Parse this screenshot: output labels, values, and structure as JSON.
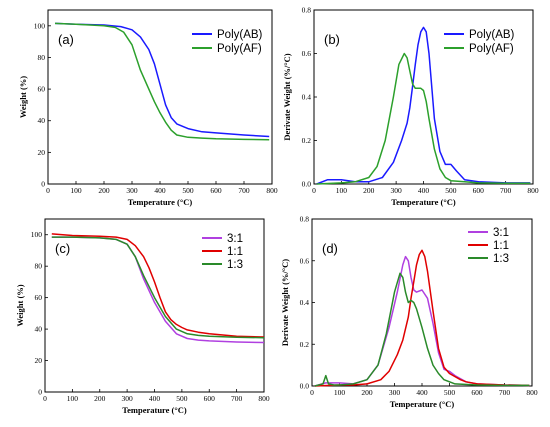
{
  "chart_data": [
    {
      "id": "a",
      "type": "line",
      "panel_label": "(a)",
      "xlabel": "Temperature (°C)",
      "ylabel": "Weight (%)",
      "xlim": [
        0,
        800
      ],
      "ylim": [
        0,
        110
      ],
      "xticks": [
        0,
        100,
        200,
        300,
        400,
        500,
        600,
        700,
        800
      ],
      "yticks": [
        0,
        20,
        40,
        60,
        80,
        100
      ],
      "legend_position": "top-right",
      "series": [
        {
          "name": "Poly(AB)",
          "color": "#1a1aff",
          "x": [
            25,
            100,
            200,
            260,
            300,
            330,
            360,
            380,
            400,
            420,
            440,
            460,
            500,
            550,
            600,
            700,
            790
          ],
          "y": [
            101.5,
            101,
            100.5,
            99.5,
            97.5,
            93,
            85,
            76,
            63,
            50,
            42,
            38,
            35,
            33,
            32.3,
            31,
            30
          ]
        },
        {
          "name": "Poly(AF)",
          "color": "#2ca02c",
          "x": [
            25,
            100,
            200,
            240,
            270,
            300,
            330,
            360,
            380,
            400,
            420,
            440,
            460,
            500,
            550,
            600,
            700,
            790
          ],
          "y": [
            101.5,
            101,
            100,
            99,
            96,
            88,
            72,
            60,
            52,
            45,
            39,
            34,
            31,
            29.5,
            29,
            28.6,
            28.2,
            28
          ]
        }
      ]
    },
    {
      "id": "b",
      "type": "line",
      "panel_label": "(b)",
      "xlabel": "Temperature (°C)",
      "ylabel": "Derivate Weight (%/°C)",
      "xlim": [
        0,
        800
      ],
      "ylim": [
        0,
        0.8
      ],
      "xticks": [
        0,
        100,
        200,
        300,
        400,
        500,
        600,
        700,
        800
      ],
      "yticks": [
        0.0,
        0.2,
        0.4,
        0.6,
        0.8
      ],
      "legend_position": "top-right",
      "series": [
        {
          "name": "Poly(AB)",
          "color": "#1a1aff",
          "x": [
            10,
            50,
            100,
            150,
            200,
            250,
            290,
            320,
            340,
            350,
            360,
            370,
            380,
            390,
            400,
            410,
            420,
            440,
            460,
            480,
            500,
            520,
            550,
            600,
            700,
            790
          ],
          "y": [
            0.0,
            0.02,
            0.02,
            0.01,
            0.01,
            0.03,
            0.1,
            0.2,
            0.28,
            0.35,
            0.45,
            0.55,
            0.64,
            0.7,
            0.72,
            0.7,
            0.6,
            0.3,
            0.15,
            0.09,
            0.09,
            0.06,
            0.02,
            0.01,
            0.005,
            0.005
          ]
        },
        {
          "name": "Poly(AF)",
          "color": "#2ca02c",
          "x": [
            10,
            100,
            150,
            200,
            230,
            260,
            290,
            310,
            330,
            340,
            350,
            360,
            370,
            380,
            390,
            400,
            410,
            420,
            440,
            460,
            480,
            500,
            550,
            600,
            700,
            790
          ],
          "y": [
            0.0,
            0.005,
            0.01,
            0.03,
            0.08,
            0.2,
            0.4,
            0.55,
            0.6,
            0.58,
            0.52,
            0.46,
            0.44,
            0.44,
            0.44,
            0.43,
            0.38,
            0.3,
            0.16,
            0.07,
            0.03,
            0.015,
            0.01,
            0.005,
            0.003,
            0.003
          ]
        }
      ]
    },
    {
      "id": "c",
      "type": "line",
      "panel_label": "(c)",
      "xlabel": "Temperature (°C)",
      "ylabel": "Weight (%)",
      "xlim": [
        0,
        800
      ],
      "ylim": [
        0,
        110
      ],
      "xticks": [
        0,
        100,
        200,
        300,
        400,
        500,
        600,
        700,
        800
      ],
      "yticks": [
        0,
        20,
        40,
        60,
        80,
        100
      ],
      "legend_position": "top-right",
      "series": [
        {
          "name": "3:1",
          "color": "#b040e0",
          "x": [
            25,
            100,
            200,
            260,
            300,
            330,
            360,
            400,
            440,
            480,
            520,
            560,
            600,
            700,
            800
          ],
          "y": [
            98.5,
            98.5,
            98,
            97,
            94,
            86,
            72,
            57,
            45,
            37,
            34,
            33,
            32.5,
            31.8,
            31.5
          ]
        },
        {
          "name": "1:1",
          "color": "#e00000",
          "x": [
            25,
            100,
            200,
            260,
            300,
            330,
            360,
            380,
            400,
            420,
            440,
            460,
            480,
            500,
            520,
            560,
            600,
            700,
            800
          ],
          "y": [
            100.5,
            99.5,
            99,
            98.5,
            97,
            93,
            86,
            79,
            70,
            60,
            51,
            46,
            43,
            41,
            39.5,
            38,
            37,
            35.5,
            35
          ]
        },
        {
          "name": "1:3",
          "color": "#2a8a2a",
          "x": [
            25,
            100,
            200,
            260,
            300,
            330,
            360,
            400,
            440,
            480,
            520,
            560,
            600,
            700,
            800
          ],
          "y": [
            98.5,
            98.5,
            98,
            97,
            94,
            86,
            74,
            60,
            48,
            40,
            37,
            36,
            35.5,
            34.8,
            34.5
          ]
        }
      ]
    },
    {
      "id": "d",
      "type": "line",
      "panel_label": "(d)",
      "xlabel": "Temperature (°C)",
      "ylabel": "Derivate Weight (%/°C)",
      "xlim": [
        0,
        800
      ],
      "ylim": [
        0,
        0.8
      ],
      "xticks": [
        0,
        100,
        200,
        300,
        400,
        500,
        600,
        700,
        800
      ],
      "yticks": [
        0.0,
        0.2,
        0.4,
        0.6,
        0.8
      ],
      "legend_position": "top-right",
      "series": [
        {
          "name": "3:1",
          "color": "#b040e0",
          "x": [
            10,
            50,
            100,
            150,
            200,
            240,
            280,
            310,
            330,
            340,
            350,
            360,
            370,
            380,
            400,
            420,
            440,
            460,
            480,
            500,
            520,
            560,
            600,
            700,
            790
          ],
          "y": [
            0.0,
            0.015,
            0.015,
            0.01,
            0.03,
            0.1,
            0.28,
            0.45,
            0.58,
            0.62,
            0.6,
            0.52,
            0.46,
            0.45,
            0.46,
            0.42,
            0.3,
            0.16,
            0.08,
            0.07,
            0.05,
            0.02,
            0.01,
            0.005,
            0.003
          ]
        },
        {
          "name": "1:1",
          "color": "#e00000",
          "x": [
            10,
            100,
            150,
            200,
            250,
            280,
            310,
            330,
            350,
            360,
            370,
            380,
            390,
            400,
            410,
            420,
            440,
            460,
            480,
            500,
            540,
            560,
            600,
            700,
            790
          ],
          "y": [
            0.0,
            0.005,
            0.005,
            0.01,
            0.03,
            0.07,
            0.15,
            0.22,
            0.33,
            0.42,
            0.5,
            0.58,
            0.63,
            0.65,
            0.62,
            0.55,
            0.36,
            0.18,
            0.09,
            0.06,
            0.03,
            0.02,
            0.01,
            0.005,
            0.003
          ]
        },
        {
          "name": "1:3",
          "color": "#2a8a2a",
          "x": [
            10,
            40,
            50,
            60,
            80,
            100,
            150,
            200,
            240,
            270,
            300,
            320,
            330,
            340,
            350,
            360,
            370,
            380,
            400,
            420,
            440,
            460,
            480,
            520,
            600,
            700,
            790
          ],
          "y": [
            0.0,
            0.01,
            0.05,
            0.01,
            0.005,
            0.005,
            0.01,
            0.03,
            0.1,
            0.25,
            0.45,
            0.54,
            0.52,
            0.45,
            0.4,
            0.41,
            0.4,
            0.37,
            0.28,
            0.18,
            0.1,
            0.06,
            0.03,
            0.01,
            0.005,
            0.003,
            0.003
          ]
        }
      ]
    }
  ]
}
